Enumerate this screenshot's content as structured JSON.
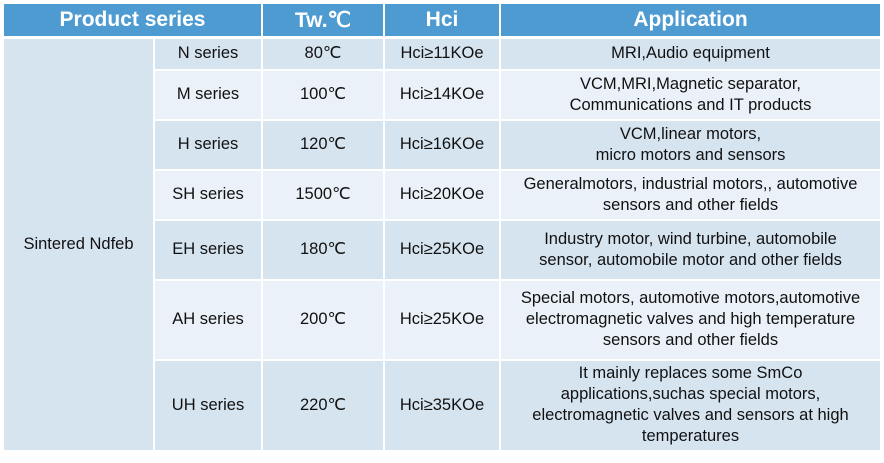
{
  "headers": [
    "Product series",
    "Tw.℃",
    "Hci",
    "Application"
  ],
  "group_label": "Sintered Ndfeb",
  "rows": [
    {
      "series": "N series",
      "tw": "80℃",
      "hci": "Hci≥11KOe",
      "app": [
        "MRI,Audio equipment"
      ]
    },
    {
      "series": "M series",
      "tw": "100℃",
      "hci": "Hci≥14KOe",
      "app": [
        "VCM,MRI,Magnetic separator,",
        "Communications and IT products"
      ]
    },
    {
      "series": "H series",
      "tw": "120℃",
      "hci": "Hci≥16KOe",
      "app": [
        "VCM,linear motors,",
        "micro motors and sensors"
      ]
    },
    {
      "series": "SH series",
      "tw": "1500℃",
      "hci": "Hci≥20KOe",
      "app": [
        "Generalmotors, industrial motors,, automotive",
        "sensors and other fields"
      ]
    },
    {
      "series": "EH series",
      "tw": "180℃",
      "hci": "Hci≥25KOe",
      "app": [
        "Industry motor, wind turbine, automobile",
        "sensor, automobile motor and other fields"
      ]
    },
    {
      "series": "AH series",
      "tw": "200℃",
      "hci": "Hci≥25KOe",
      "app": [
        "Special motors, automotive motors,automotive",
        "electromagnetic valves and high temperature",
        "sensors and other fields"
      ]
    },
    {
      "series": "UH series",
      "tw": "220℃",
      "hci": "Hci≥35KOe",
      "app": [
        "It mainly replaces some SmCo",
        "applications,suchas special motors,",
        "electromagnetic valves and sensors at high",
        "temperatures"
      ]
    }
  ]
}
